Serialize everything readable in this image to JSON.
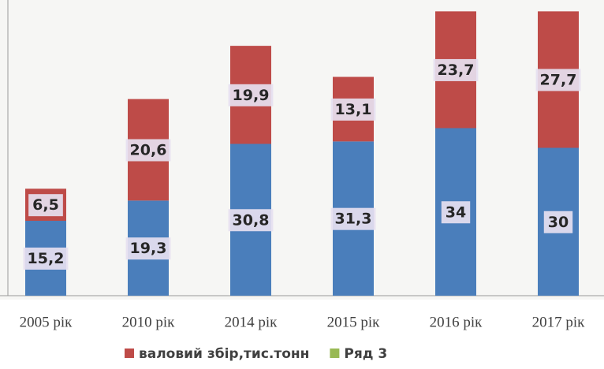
{
  "chart_data": {
    "type": "stacked-bar",
    "categories": [
      "2005 рік",
      "2010 рік",
      "2014 рік",
      "2015 рік",
      "2016 рік",
      "2017 рік"
    ],
    "series": [
      {
        "color": "#4a7ebb",
        "values": [
          15.2,
          19.3,
          30.8,
          31.3,
          34,
          30
        ],
        "value_labels": [
          "15,2",
          "19,3",
          "30,8",
          "31,3",
          "34",
          "30"
        ]
      },
      {
        "name": "валовий збір,тис.тонн",
        "color": "#be4b48",
        "values": [
          6.5,
          20.6,
          19.9,
          13.1,
          23.7,
          27.7
        ],
        "value_labels": [
          "6,5",
          "20,6",
          "19,9",
          "13,1",
          "23,7",
          "27,7"
        ]
      },
      {
        "name": "Ряд 3",
        "color": "#98b954",
        "values": [
          null,
          null,
          null,
          null,
          null,
          null
        ]
      }
    ],
    "ylim": [
      0,
      60
    ]
  }
}
